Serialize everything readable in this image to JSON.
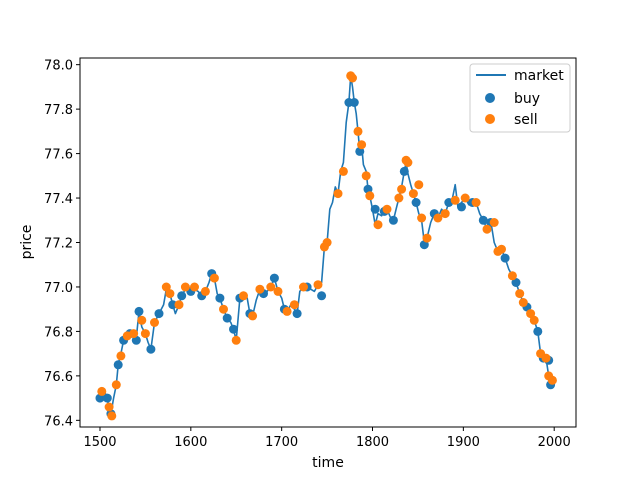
{
  "chart_data": {
    "type": "line",
    "title": "",
    "xlabel": "time",
    "ylabel": "price",
    "xlim": [
      1478,
      2024
    ],
    "ylim": [
      76.37,
      78.03
    ],
    "xticks": [
      1500,
      1600,
      1700,
      1800,
      1900,
      2000
    ],
    "yticks": [
      76.4,
      76.6,
      76.8,
      77.0,
      77.2,
      77.4,
      77.6,
      77.8,
      78.0
    ],
    "grid": false,
    "legend_position": "top-right",
    "colors": {
      "market": "#1f77b4",
      "buy": "#1f77b4",
      "sell": "#ff7f0e"
    },
    "series": [
      {
        "name": "market",
        "kind": "line",
        "points": [
          [
            1500,
            76.5
          ],
          [
            1505,
            76.53
          ],
          [
            1508,
            76.5
          ],
          [
            1510,
            76.45
          ],
          [
            1512,
            76.43
          ],
          [
            1515,
            76.5
          ],
          [
            1518,
            76.56
          ],
          [
            1520,
            76.65
          ],
          [
            1523,
            76.7
          ],
          [
            1526,
            76.76
          ],
          [
            1530,
            76.78
          ],
          [
            1533,
            76.79
          ],
          [
            1536,
            76.8
          ],
          [
            1540,
            76.77
          ],
          [
            1543,
            76.89
          ],
          [
            1546,
            76.82
          ],
          [
            1550,
            76.79
          ],
          [
            1553,
            76.75
          ],
          [
            1556,
            76.72
          ],
          [
            1560,
            76.84
          ],
          [
            1565,
            76.88
          ],
          [
            1570,
            76.92
          ],
          [
            1573,
            76.99
          ],
          [
            1577,
            76.97
          ],
          [
            1580,
            76.92
          ],
          [
            1583,
            76.88
          ],
          [
            1587,
            76.92
          ],
          [
            1590,
            76.96
          ],
          [
            1594,
            76.99
          ],
          [
            1597,
            77.0
          ],
          [
            1600,
            76.98
          ],
          [
            1604,
            76.99
          ],
          [
            1608,
            76.98
          ],
          [
            1612,
            76.96
          ],
          [
            1616,
            76.98
          ],
          [
            1620,
            77.02
          ],
          [
            1623,
            77.06
          ],
          [
            1626,
            77.04
          ],
          [
            1629,
            76.97
          ],
          [
            1632,
            76.95
          ],
          [
            1636,
            76.9
          ],
          [
            1640,
            76.86
          ],
          [
            1644,
            76.84
          ],
          [
            1647,
            76.81
          ],
          [
            1650,
            76.76
          ],
          [
            1654,
            76.95
          ],
          [
            1658,
            76.96
          ],
          [
            1662,
            76.95
          ],
          [
            1665,
            76.88
          ],
          [
            1668,
            76.87
          ],
          [
            1672,
            76.94
          ],
          [
            1676,
            76.99
          ],
          [
            1680,
            76.97
          ],
          [
            1684,
            76.98
          ],
          [
            1688,
            77.0
          ],
          [
            1692,
            77.04
          ],
          [
            1696,
            76.98
          ],
          [
            1700,
            76.95
          ],
          [
            1703,
            76.9
          ],
          [
            1706,
            76.89
          ],
          [
            1710,
            76.92
          ],
          [
            1714,
            76.9
          ],
          [
            1717,
            76.88
          ],
          [
            1720,
            76.98
          ],
          [
            1724,
            77.0
          ],
          [
            1728,
            77.0
          ],
          [
            1732,
            76.99
          ],
          [
            1736,
            76.98
          ],
          [
            1740,
            77.01
          ],
          [
            1744,
            77.02
          ],
          [
            1747,
            77.18
          ],
          [
            1750,
            77.2
          ],
          [
            1753,
            77.35
          ],
          [
            1756,
            77.38
          ],
          [
            1759,
            77.45
          ],
          [
            1762,
            77.42
          ],
          [
            1765,
            77.52
          ],
          [
            1768,
            77.56
          ],
          [
            1771,
            77.74
          ],
          [
            1774,
            77.83
          ],
          [
            1776,
            77.95
          ],
          [
            1778,
            77.9
          ],
          [
            1780,
            77.83
          ],
          [
            1782,
            77.78
          ],
          [
            1784,
            77.7
          ],
          [
            1786,
            77.61
          ],
          [
            1788,
            77.64
          ],
          [
            1790,
            77.55
          ],
          [
            1793,
            77.52
          ],
          [
            1795,
            77.44
          ],
          [
            1797,
            77.41
          ],
          [
            1800,
            77.35
          ],
          [
            1803,
            77.28
          ],
          [
            1806,
            77.33
          ],
          [
            1810,
            77.32
          ],
          [
            1813,
            77.36
          ],
          [
            1816,
            77.35
          ],
          [
            1820,
            77.31
          ],
          [
            1823,
            77.3
          ],
          [
            1826,
            77.35
          ],
          [
            1829,
            77.4
          ],
          [
            1832,
            77.45
          ],
          [
            1835,
            77.52
          ],
          [
            1837,
            77.56
          ],
          [
            1839,
            77.51
          ],
          [
            1842,
            77.46
          ],
          [
            1845,
            77.42
          ],
          [
            1848,
            77.38
          ],
          [
            1851,
            77.33
          ],
          [
            1854,
            77.3
          ],
          [
            1857,
            77.2
          ],
          [
            1860,
            77.22
          ],
          [
            1864,
            77.29
          ],
          [
            1868,
            77.33
          ],
          [
            1872,
            77.31
          ],
          [
            1876,
            77.35
          ],
          [
            1880,
            77.33
          ],
          [
            1884,
            77.38
          ],
          [
            1888,
            77.4
          ],
          [
            1891,
            77.46
          ],
          [
            1894,
            77.36
          ],
          [
            1898,
            77.38
          ],
          [
            1902,
            77.4
          ],
          [
            1906,
            77.37
          ],
          [
            1910,
            77.39
          ],
          [
            1914,
            77.38
          ],
          [
            1918,
            77.33
          ],
          [
            1922,
            77.3
          ],
          [
            1926,
            77.26
          ],
          [
            1930,
            77.3
          ],
          [
            1934,
            77.2
          ],
          [
            1938,
            77.16
          ],
          [
            1942,
            77.17
          ],
          [
            1946,
            77.13
          ],
          [
            1950,
            77.08
          ],
          [
            1954,
            77.05
          ],
          [
            1958,
            77.02
          ],
          [
            1962,
            76.97
          ],
          [
            1966,
            76.93
          ],
          [
            1970,
            76.91
          ],
          [
            1974,
            76.88
          ],
          [
            1978,
            76.85
          ],
          [
            1982,
            76.8
          ],
          [
            1985,
            76.7
          ],
          [
            1988,
            76.68
          ],
          [
            1991,
            76.68
          ],
          [
            1994,
            76.6
          ],
          [
            1996,
            76.56
          ],
          [
            1998,
            76.58
          ]
        ]
      },
      {
        "name": "buy",
        "kind": "scatter",
        "points": [
          [
            1500,
            76.5
          ],
          [
            1508,
            76.5
          ],
          [
            1512,
            76.43
          ],
          [
            1520,
            76.65
          ],
          [
            1526,
            76.76
          ],
          [
            1533,
            76.79
          ],
          [
            1540,
            76.76
          ],
          [
            1543,
            76.89
          ],
          [
            1556,
            76.72
          ],
          [
            1565,
            76.88
          ],
          [
            1580,
            76.92
          ],
          [
            1590,
            76.96
          ],
          [
            1600,
            76.98
          ],
          [
            1612,
            76.96
          ],
          [
            1623,
            77.06
          ],
          [
            1632,
            76.95
          ],
          [
            1640,
            76.86
          ],
          [
            1647,
            76.81
          ],
          [
            1654,
            76.95
          ],
          [
            1665,
            76.88
          ],
          [
            1680,
            76.97
          ],
          [
            1692,
            77.04
          ],
          [
            1703,
            76.9
          ],
          [
            1717,
            76.88
          ],
          [
            1728,
            77.0
          ],
          [
            1744,
            76.96
          ],
          [
            1774,
            77.83
          ],
          [
            1780,
            77.83
          ],
          [
            1786,
            77.61
          ],
          [
            1795,
            77.44
          ],
          [
            1803,
            77.35
          ],
          [
            1813,
            77.34
          ],
          [
            1823,
            77.3
          ],
          [
            1835,
            77.52
          ],
          [
            1848,
            77.38
          ],
          [
            1857,
            77.19
          ],
          [
            1868,
            77.33
          ],
          [
            1884,
            77.38
          ],
          [
            1898,
            77.36
          ],
          [
            1910,
            77.38
          ],
          [
            1922,
            77.3
          ],
          [
            1930,
            77.29
          ],
          [
            1946,
            77.13
          ],
          [
            1958,
            77.02
          ],
          [
            1970,
            76.91
          ],
          [
            1982,
            76.8
          ],
          [
            1988,
            76.68
          ],
          [
            1994,
            76.67
          ],
          [
            1996,
            76.56
          ]
        ]
      },
      {
        "name": "sell",
        "kind": "scatter",
        "points": [
          [
            1502,
            76.53
          ],
          [
            1510,
            76.46
          ],
          [
            1513,
            76.42
          ],
          [
            1518,
            76.56
          ],
          [
            1523,
            76.69
          ],
          [
            1530,
            76.78
          ],
          [
            1537,
            76.79
          ],
          [
            1546,
            76.85
          ],
          [
            1550,
            76.79
          ],
          [
            1560,
            76.84
          ],
          [
            1573,
            77.0
          ],
          [
            1577,
            76.97
          ],
          [
            1587,
            76.92
          ],
          [
            1594,
            77.0
          ],
          [
            1604,
            77.0
          ],
          [
            1616,
            76.98
          ],
          [
            1626,
            77.04
          ],
          [
            1636,
            76.9
          ],
          [
            1650,
            76.76
          ],
          [
            1658,
            76.96
          ],
          [
            1668,
            76.87
          ],
          [
            1676,
            76.99
          ],
          [
            1688,
            77.0
          ],
          [
            1696,
            76.98
          ],
          [
            1706,
            76.89
          ],
          [
            1714,
            76.92
          ],
          [
            1724,
            77.0
          ],
          [
            1740,
            77.01
          ],
          [
            1747,
            77.18
          ],
          [
            1750,
            77.2
          ],
          [
            1762,
            77.42
          ],
          [
            1768,
            77.52
          ],
          [
            1776,
            77.95
          ],
          [
            1778,
            77.94
          ],
          [
            1784,
            77.7
          ],
          [
            1788,
            77.64
          ],
          [
            1793,
            77.5
          ],
          [
            1797,
            77.41
          ],
          [
            1806,
            77.28
          ],
          [
            1816,
            77.35
          ],
          [
            1829,
            77.4
          ],
          [
            1832,
            77.44
          ],
          [
            1837,
            77.57
          ],
          [
            1839,
            77.56
          ],
          [
            1845,
            77.42
          ],
          [
            1851,
            77.46
          ],
          [
            1854,
            77.31
          ],
          [
            1860,
            77.22
          ],
          [
            1872,
            77.31
          ],
          [
            1880,
            77.33
          ],
          [
            1891,
            77.39
          ],
          [
            1902,
            77.4
          ],
          [
            1914,
            77.38
          ],
          [
            1926,
            77.26
          ],
          [
            1934,
            77.29
          ],
          [
            1938,
            77.16
          ],
          [
            1942,
            77.17
          ],
          [
            1954,
            77.05
          ],
          [
            1962,
            76.97
          ],
          [
            1966,
            76.93
          ],
          [
            1974,
            76.88
          ],
          [
            1978,
            76.85
          ],
          [
            1985,
            76.7
          ],
          [
            1991,
            76.68
          ],
          [
            1998,
            76.58
          ],
          [
            1994,
            76.6
          ]
        ]
      }
    ]
  }
}
